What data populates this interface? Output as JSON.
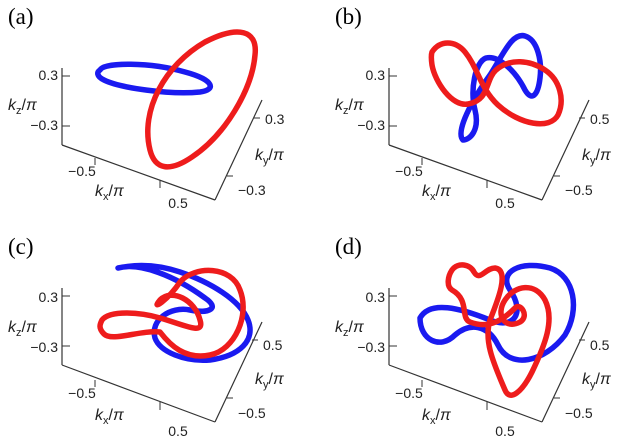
{
  "colors": {
    "blue": "#1a1af0",
    "red": "#ee1c1c",
    "axis": "#333333"
  },
  "panels": [
    {
      "label": "(a)",
      "axes": {
        "kz": "k_z/π",
        "kx": "k_x/π",
        "ky": "k_y/π"
      },
      "ticks": {
        "z_top": "0.3",
        "z_bot": "−0.3",
        "x_left": "−0.5",
        "x_right": "0.5",
        "y_top": "0.3",
        "y_bot": "−0.3"
      }
    },
    {
      "label": "(b)",
      "axes": {
        "kz": "k_z/π",
        "kx": "k_x/π",
        "ky": "k_y/π"
      },
      "ticks": {
        "z_top": "0.3",
        "z_bot": "−0.3",
        "x_left": "−0.5",
        "x_right": "0.5",
        "y_top": "0.5",
        "y_bot": "−0.5"
      }
    },
    {
      "label": "(c)",
      "axes": {
        "kz": "k_z/π",
        "kx": "k_x/π",
        "ky": "k_y/π"
      },
      "ticks": {
        "z_top": "0.3",
        "z_bot": "−0.3",
        "x_left": "−0.5",
        "x_right": "0.5",
        "y_top": "0.5",
        "y_bot": "−0.5"
      }
    },
    {
      "label": "(d)",
      "axes": {
        "kz": "k_z/π",
        "kx": "k_x/π",
        "ky": "k_y/π"
      },
      "ticks": {
        "z_top": "0.3",
        "z_bot": "−0.3",
        "x_left": "−0.5",
        "x_right": "0.5",
        "y_top": "0.5",
        "y_bot": "−0.5"
      }
    }
  ]
}
